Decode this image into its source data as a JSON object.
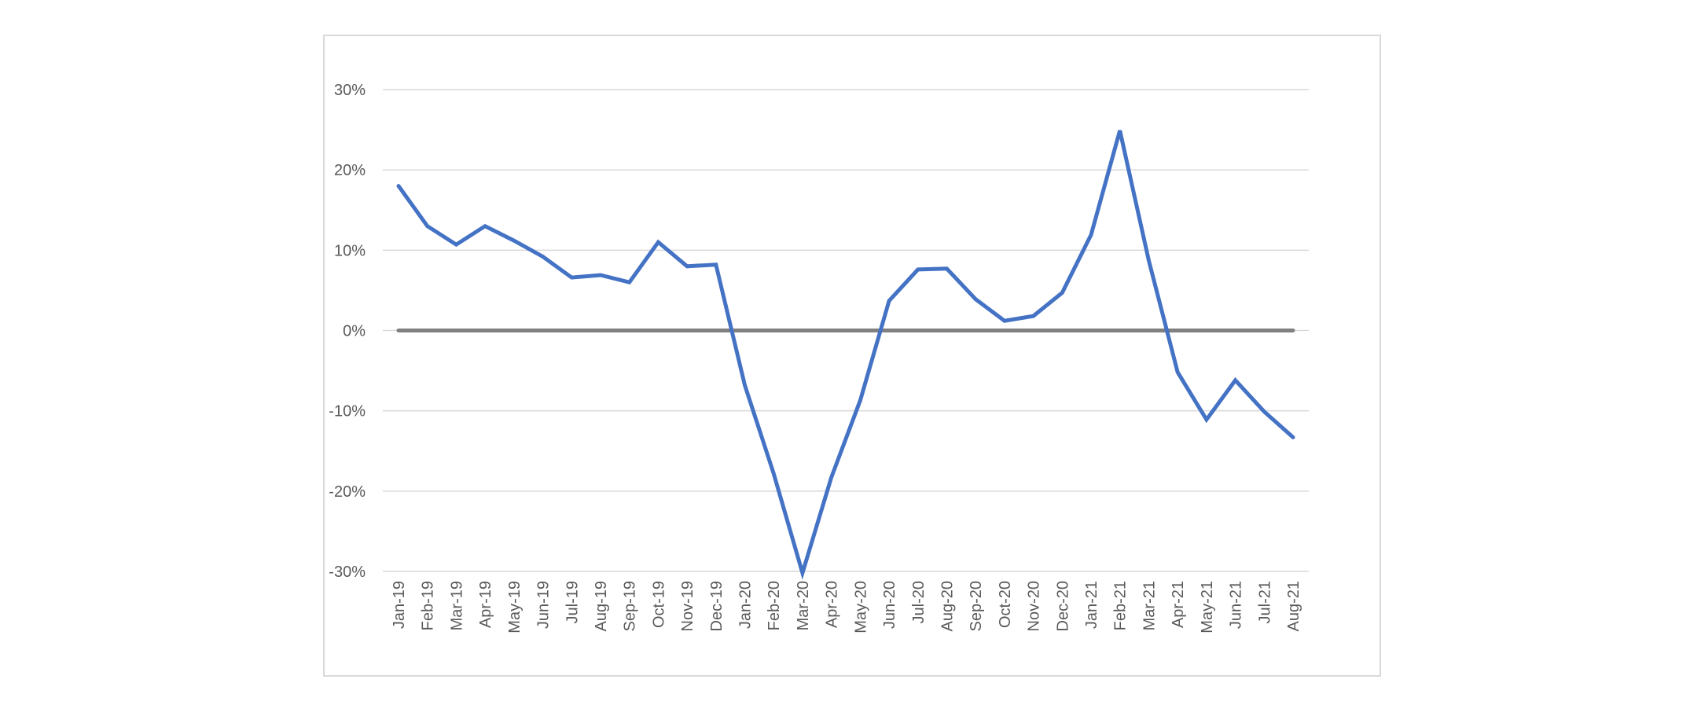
{
  "chart_data": {
    "type": "line",
    "title": "",
    "xlabel": "",
    "ylabel": "",
    "ylim": [
      -0.3,
      0.3
    ],
    "y_ticks": [
      0.3,
      0.2,
      0.1,
      0,
      -0.1,
      -0.2,
      -0.3
    ],
    "y_tick_labels": [
      "30%",
      "20%",
      "10%",
      "0%",
      "-10%",
      "-20%",
      "-30%"
    ],
    "grid": true,
    "legend": "none",
    "categories": [
      "Jan-19",
      "Feb-19",
      "Mar-19",
      "Apr-19",
      "May-19",
      "Jun-19",
      "Jul-19",
      "Aug-19",
      "Sep-19",
      "Oct-19",
      "Nov-19",
      "Dec-19",
      "Jan-20",
      "Feb-20",
      "Mar-20",
      "Apr-20",
      "May-20",
      "Jun-20",
      "Jul-20",
      "Aug-20",
      "Sep-20",
      "Oct-20",
      "Nov-20",
      "Dec-20",
      "Jan-21",
      "Feb-21",
      "Mar-21",
      "Apr-21",
      "May-21",
      "Jun-21",
      "Jul-21",
      "Aug-21"
    ],
    "series": [
      {
        "color": "#4472c4",
        "values": [
          0.18,
          0.13,
          0.107,
          0.13,
          0.112,
          0.092,
          0.066,
          0.069,
          0.06,
          0.11,
          0.08,
          0.082,
          -0.068,
          -0.178,
          -0.302,
          -0.183,
          -0.087,
          0.037,
          0.076,
          0.077,
          0.039,
          0.012,
          0.018,
          0.047,
          0.119,
          0.249,
          0.087,
          -0.052,
          -0.111,
          -0.062,
          -0.101,
          -0.133
        ]
      },
      {
        "color": "#808080",
        "values": [
          0,
          0,
          0,
          0,
          0,
          0,
          0,
          0,
          0,
          0,
          0,
          0,
          0,
          0,
          0,
          0,
          0,
          0,
          0,
          0,
          0,
          0,
          0,
          0,
          0,
          0,
          0,
          0,
          0,
          0,
          0,
          0
        ]
      }
    ],
    "colors": {
      "gridline": "#d9d9d9",
      "frame": "#d9d9d9",
      "tick_text": "#595959"
    }
  }
}
